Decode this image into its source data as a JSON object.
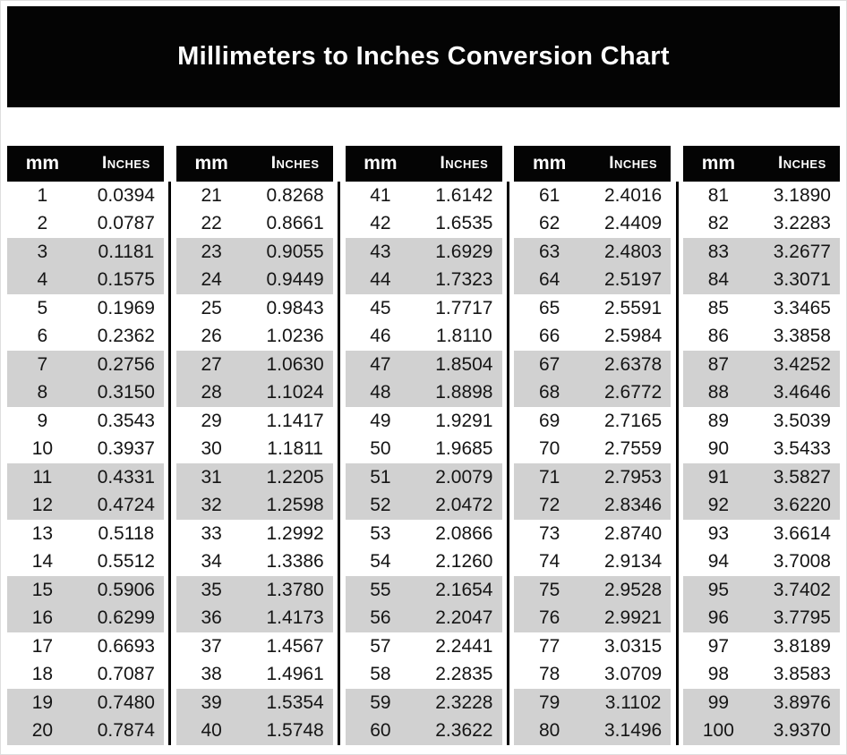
{
  "title": "Millimeters to Inches Conversion Chart",
  "labels": {
    "mm": "mm",
    "inches": "Inches"
  },
  "colors": {
    "banner_bg": "#040404",
    "header_bg": "#040404",
    "header_text": "#ffffff",
    "row_bg": "#ffffff",
    "row_alt_bg": "#d1d1d1",
    "text": "#151515",
    "divider": "#000000"
  },
  "tables": [
    [
      [
        "1",
        "0.0394"
      ],
      [
        "2",
        "0.0787"
      ],
      [
        "3",
        "0.1181"
      ],
      [
        "4",
        "0.1575"
      ],
      [
        "5",
        "0.1969"
      ],
      [
        "6",
        "0.2362"
      ],
      [
        "7",
        "0.2756"
      ],
      [
        "8",
        "0.3150"
      ],
      [
        "9",
        "0.3543"
      ],
      [
        "10",
        "0.3937"
      ],
      [
        "11",
        "0.4331"
      ],
      [
        "12",
        "0.4724"
      ],
      [
        "13",
        "0.5118"
      ],
      [
        "14",
        "0.5512"
      ],
      [
        "15",
        "0.5906"
      ],
      [
        "16",
        "0.6299"
      ],
      [
        "17",
        "0.6693"
      ],
      [
        "18",
        "0.7087"
      ],
      [
        "19",
        "0.7480"
      ],
      [
        "20",
        "0.7874"
      ]
    ],
    [
      [
        "21",
        "0.8268"
      ],
      [
        "22",
        "0.8661"
      ],
      [
        "23",
        "0.9055"
      ],
      [
        "24",
        "0.9449"
      ],
      [
        "25",
        "0.9843"
      ],
      [
        "26",
        "1.0236"
      ],
      [
        "27",
        "1.0630"
      ],
      [
        "28",
        "1.1024"
      ],
      [
        "29",
        "1.1417"
      ],
      [
        "30",
        "1.1811"
      ],
      [
        "31",
        "1.2205"
      ],
      [
        "32",
        "1.2598"
      ],
      [
        "33",
        "1.2992"
      ],
      [
        "34",
        "1.3386"
      ],
      [
        "35",
        "1.3780"
      ],
      [
        "36",
        "1.4173"
      ],
      [
        "37",
        "1.4567"
      ],
      [
        "38",
        "1.4961"
      ],
      [
        "39",
        "1.5354"
      ],
      [
        "40",
        "1.5748"
      ]
    ],
    [
      [
        "41",
        "1.6142"
      ],
      [
        "42",
        "1.6535"
      ],
      [
        "43",
        "1.6929"
      ],
      [
        "44",
        "1.7323"
      ],
      [
        "45",
        "1.7717"
      ],
      [
        "46",
        "1.8110"
      ],
      [
        "47",
        "1.8504"
      ],
      [
        "48",
        "1.8898"
      ],
      [
        "49",
        "1.9291"
      ],
      [
        "50",
        "1.9685"
      ],
      [
        "51",
        "2.0079"
      ],
      [
        "52",
        "2.0472"
      ],
      [
        "53",
        "2.0866"
      ],
      [
        "54",
        "2.1260"
      ],
      [
        "55",
        "2.1654"
      ],
      [
        "56",
        "2.2047"
      ],
      [
        "57",
        "2.2441"
      ],
      [
        "58",
        "2.2835"
      ],
      [
        "59",
        "2.3228"
      ],
      [
        "60",
        "2.3622"
      ]
    ],
    [
      [
        "61",
        "2.4016"
      ],
      [
        "62",
        "2.4409"
      ],
      [
        "63",
        "2.4803"
      ],
      [
        "64",
        "2.5197"
      ],
      [
        "65",
        "2.5591"
      ],
      [
        "66",
        "2.5984"
      ],
      [
        "67",
        "2.6378"
      ],
      [
        "68",
        "2.6772"
      ],
      [
        "69",
        "2.7165"
      ],
      [
        "70",
        "2.7559"
      ],
      [
        "71",
        "2.7953"
      ],
      [
        "72",
        "2.8346"
      ],
      [
        "73",
        "2.8740"
      ],
      [
        "74",
        "2.9134"
      ],
      [
        "75",
        "2.9528"
      ],
      [
        "76",
        "2.9921"
      ],
      [
        "77",
        "3.0315"
      ],
      [
        "78",
        "3.0709"
      ],
      [
        "79",
        "3.1102"
      ],
      [
        "80",
        "3.1496"
      ]
    ],
    [
      [
        "81",
        "3.1890"
      ],
      [
        "82",
        "3.2283"
      ],
      [
        "83",
        "3.2677"
      ],
      [
        "84",
        "3.3071"
      ],
      [
        "85",
        "3.3465"
      ],
      [
        "86",
        "3.3858"
      ],
      [
        "87",
        "3.4252"
      ],
      [
        "88",
        "3.4646"
      ],
      [
        "89",
        "3.5039"
      ],
      [
        "90",
        "3.5433"
      ],
      [
        "91",
        "3.5827"
      ],
      [
        "92",
        "3.6220"
      ],
      [
        "93",
        "3.6614"
      ],
      [
        "94",
        "3.7008"
      ],
      [
        "95",
        "3.7402"
      ],
      [
        "96",
        "3.7795"
      ],
      [
        "97",
        "3.8189"
      ],
      [
        "98",
        "3.8583"
      ],
      [
        "99",
        "3.8976"
      ],
      [
        "100",
        "3.9370"
      ]
    ]
  ]
}
